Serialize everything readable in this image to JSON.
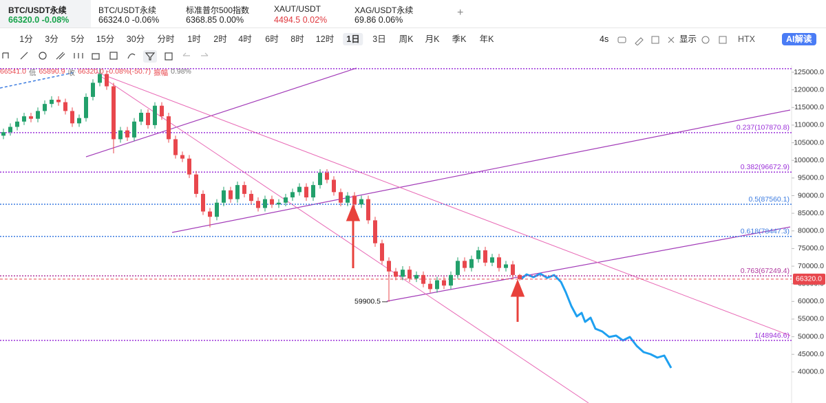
{
  "tickers": [
    {
      "name": "BTC/USDT永续",
      "price": "66320.0",
      "change": "-0.08%",
      "color": "#16a34a"
    },
    {
      "name": "BTC/USDT永续",
      "price": "66324.0",
      "change": "-0.06%",
      "color": "#222222"
    },
    {
      "name": "标准普尔500指数",
      "price": "6368.85",
      "change": "0.00%",
      "color": "#222222"
    },
    {
      "name": "XAUT/USDT",
      "price": "4494.5",
      "change": "0.02%",
      "color": "#e0383e"
    },
    {
      "name": "XAG/USDT永续",
      "price": "69.86",
      "change": "0.06%",
      "color": "#222222"
    }
  ],
  "add_tab": "+",
  "intervals": [
    "1分",
    "3分",
    "5分",
    "15分",
    "30分",
    "分时",
    "1时",
    "2时",
    "4时",
    "6时",
    "8时",
    "12时",
    "1日",
    "3日",
    "周K",
    "月K",
    "季K",
    "年K"
  ],
  "active_interval": 12,
  "toolbar_right": {
    "countdown": "4s",
    "display": "显示",
    "exchange": "HTX",
    "ai": "AI解读"
  },
  "chart_data": {
    "type": "candlestick",
    "info": [
      "66541.0",
      "低",
      "65890.9",
      "收",
      "66320.0",
      "-0.08%(-50.7)",
      "振幅",
      "0.98%"
    ],
    "categories": [
      null,
      null,
      null,
      null,
      null,
      null,
      null,
      null,
      null,
      null,
      null,
      null,
      null,
      null,
      null,
      null,
      null,
      null,
      null,
      null,
      null,
      null,
      null,
      null,
      null,
      null,
      null,
      null,
      null,
      null,
      null,
      null,
      null,
      null,
      null,
      null,
      null,
      null,
      null,
      null,
      null,
      null,
      null,
      null,
      null,
      null,
      null,
      null,
      null,
      null,
      null,
      null,
      null,
      null,
      null,
      null,
      null,
      null,
      null,
      null,
      null,
      null,
      null,
      null,
      null,
      null,
      null,
      null,
      null,
      null,
      null,
      null,
      null,
      null,
      null,
      null
    ],
    "open": [
      107000,
      108000,
      109500,
      111000,
      112500,
      111800,
      114000,
      116000,
      117200,
      116500,
      114000,
      110500,
      112000,
      118000,
      122000,
      124500,
      121000,
      106000,
      108500,
      106500,
      111000,
      113500,
      110000,
      115500,
      112500,
      106000,
      101500,
      100500,
      96000,
      90500,
      85500,
      84000,
      88000,
      91500,
      89000,
      93000,
      90500,
      88500,
      86500,
      89000,
      87500,
      88000,
      89500,
      91000,
      92500,
      89500,
      93000,
      96500,
      94500,
      91000,
      88000,
      90000,
      87500,
      89000,
      83000,
      76500,
      71500,
      68500,
      67000,
      69000,
      66500,
      67500,
      65000,
      63500,
      66000,
      64500,
      67500,
      71500,
      69500,
      72000,
      74500,
      71000,
      72500,
      69500,
      70500,
      67500
    ],
    "high": [
      109000,
      110500,
      112000,
      113500,
      113500,
      115000,
      117000,
      118200,
      118200,
      117500,
      115000,
      113000,
      119000,
      123000,
      126000,
      125500,
      122000,
      109500,
      109500,
      112000,
      114500,
      114500,
      116500,
      116500,
      113500,
      107000,
      102500,
      101500,
      97000,
      91500,
      86500,
      89000,
      92500,
      92500,
      94000,
      94000,
      91500,
      89500,
      90000,
      90000,
      89000,
      90500,
      92000,
      93500,
      93500,
      94000,
      97500,
      97500,
      95500,
      92000,
      91000,
      91000,
      90000,
      90000,
      84000,
      77500,
      72500,
      69500,
      70000,
      70000,
      68500,
      68500,
      66000,
      67000,
      67000,
      68500,
      72500,
      72500,
      73000,
      75500,
      75500,
      73500,
      73500,
      71500,
      71500,
      67800
    ],
    "low": [
      106000,
      107000,
      108500,
      110000,
      110800,
      110800,
      113000,
      115000,
      115500,
      113000,
      109500,
      109500,
      111000,
      117000,
      121000,
      120000,
      102000,
      105000,
      105500,
      105500,
      110000,
      109000,
      109000,
      111500,
      105000,
      100500,
      99500,
      95000,
      89500,
      84500,
      81000,
      83000,
      87000,
      88000,
      88000,
      89500,
      87500,
      85500,
      85500,
      86500,
      86500,
      87000,
      88500,
      90000,
      88500,
      88500,
      92000,
      93500,
      90000,
      87000,
      87000,
      86500,
      86500,
      82000,
      75500,
      70500,
      59900.5,
      66000,
      66000,
      65500,
      65500,
      64000,
      62500,
      62500,
      63500,
      63500,
      66500,
      68500,
      68500,
      71000,
      70000,
      70000,
      68500,
      68500,
      66500,
      65890.9
    ],
    "close": [
      108000,
      109500,
      111000,
      112500,
      111800,
      114000,
      116000,
      117200,
      116500,
      114000,
      110500,
      112000,
      118000,
      122000,
      124500,
      121000,
      106000,
      108500,
      106500,
      111000,
      113500,
      110000,
      115500,
      112500,
      106000,
      101500,
      100500,
      96000,
      90500,
      85500,
      84000,
      88000,
      91500,
      89000,
      93000,
      90500,
      88500,
      86500,
      89000,
      87500,
      88000,
      89500,
      91000,
      92500,
      89500,
      93000,
      96500,
      94500,
      91000,
      88000,
      90000,
      87500,
      89000,
      83000,
      76500,
      71500,
      68500,
      67000,
      69000,
      66500,
      67500,
      65000,
      63500,
      66000,
      64500,
      67500,
      71500,
      69500,
      72000,
      74500,
      71000,
      72500,
      69500,
      70500,
      67500,
      66320
    ],
    "up_color": "#22a06b",
    "down_color": "#e8474d",
    "ylim": [
      31200,
      126950
    ],
    "yticks": [
      {
        "value": 40000,
        "label": "40000.0"
      },
      {
        "value": 45000,
        "label": "45000.0"
      },
      {
        "value": 50000,
        "label": "50000.0"
      },
      {
        "value": 55000,
        "label": "55000.0"
      },
      {
        "value": 60000,
        "label": "60000.0"
      },
      {
        "value": 65000,
        "label": "65000.0"
      },
      {
        "value": 70000,
        "label": "70000.0"
      },
      {
        "value": 75000,
        "label": "75000.0"
      },
      {
        "value": 80000,
        "label": "80000.0"
      },
      {
        "value": 85000,
        "label": "85000.0"
      },
      {
        "value": 90000,
        "label": "90000.0"
      },
      {
        "value": 95000,
        "label": "95000.0"
      },
      {
        "value": 100000,
        "label": "100000.0"
      },
      {
        "value": 105000,
        "label": "105000.0"
      },
      {
        "value": 110000,
        "label": "110000.0"
      },
      {
        "value": 115000,
        "label": "115000.0"
      },
      {
        "value": 120000,
        "label": "120000.0"
      },
      {
        "value": 125000,
        "label": "125000.0"
      }
    ],
    "levels": [
      {
        "value": 126000,
        "color": "#9b30d9"
      },
      {
        "value": 107870.8,
        "label": "0.237(107870.8)",
        "color": "#9b30d9"
      },
      {
        "value": 96672.9,
        "label": "0.382(96672.9)",
        "color": "#9b30d9"
      },
      {
        "value": 87560.1,
        "label": "0.5(87560.1)",
        "color": "#3b7be0"
      },
      {
        "value": 78447.3,
        "label": "0.618(78447.3)",
        "color": "#3b7be0"
      },
      {
        "value": 67249.4,
        "label": "0.763(67249.4)",
        "color": "#b0389e"
      },
      {
        "value": 48946.6,
        "label": "1(48946.6)",
        "color": "#9b30d9"
      }
    ],
    "last": {
      "value": 66320,
      "label": "66320.0",
      "color": "#e8474d"
    },
    "annotations": [
      {
        "value": 59900.5,
        "label": "59900.5"
      }
    ]
  }
}
